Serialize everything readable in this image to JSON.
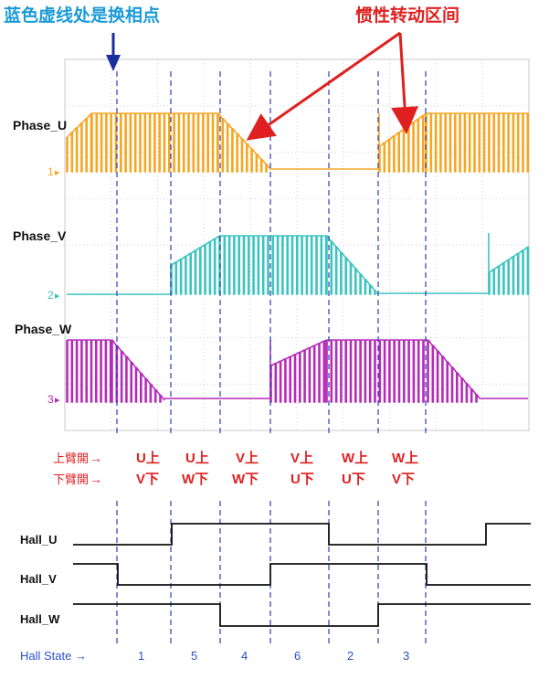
{
  "annotations": {
    "blue_note": "蓝色虚线处是换相点",
    "red_note": "惯性转动区间"
  },
  "waveforms": {
    "phase_u_label": "Phase_U",
    "phase_v_label": "Phase_V",
    "phase_w_label": "Phase_W",
    "channel_markers": [
      "1",
      "2",
      "3"
    ]
  },
  "switch_table": {
    "upper_label": "上臂開",
    "lower_label": "下臂開",
    "arrow": "→",
    "upper": [
      "U上",
      "U上",
      "V上",
      "V上",
      "W上",
      "W上"
    ],
    "lower": [
      "V下",
      "W下",
      "W下",
      "U下",
      "U下",
      "V下"
    ]
  },
  "hall": {
    "hall_u_label": "Hall_U",
    "hall_v_label": "Hall_V",
    "hall_w_label": "Hall_W",
    "state_label": "Hall State →",
    "states": [
      "1",
      "5",
      "4",
      "6",
      "2",
      "3"
    ]
  },
  "colors": {
    "phase_u": "#f5a623",
    "phase_v": "#3cc4c0",
    "phase_w": "#b52bb8",
    "annotation_blue": "#1b9bd7",
    "annotation_red": "#e02020",
    "dashed_line": "#2a3fb0",
    "hall_state_text": "#2a4fc9"
  }
}
